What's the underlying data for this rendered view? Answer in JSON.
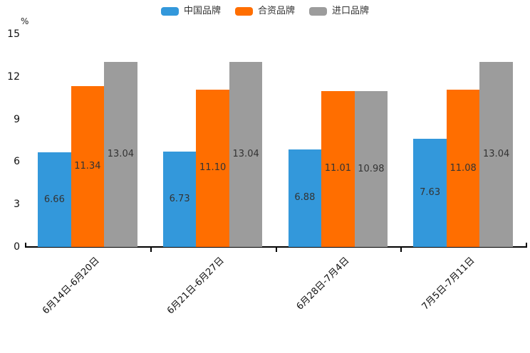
{
  "colors": {
    "china_brand": "#3398DB",
    "joint_venture_brand": "#FF6E00",
    "import_brand": "#9C9C9C",
    "axis_line": "#000000",
    "value_label_text": "#333333",
    "tick_label_text": "#111111",
    "background": "#ffffff"
  },
  "legend": {
    "items": [
      {
        "label": "中国品牌",
        "color": "#3398DB"
      },
      {
        "label": "合资品牌",
        "color": "#FF6E00"
      },
      {
        "label": "进口品牌",
        "color": "#9C9C9C"
      }
    ]
  },
  "chart_data": {
    "type": "bar",
    "title": "",
    "unit_label": "%",
    "categories": [
      "6月14日-6月20日",
      "6月21日-6月27日",
      "6月28日-7月4日",
      "7月5日-7月11日"
    ],
    "series": [
      {
        "name": "中国品牌",
        "color": "#3398DB",
        "values": [
          6.66,
          6.73,
          6.88,
          7.63
        ]
      },
      {
        "name": "合资品牌",
        "color": "#FF6E00",
        "values": [
          11.34,
          11.1,
          11.01,
          11.08
        ]
      },
      {
        "name": "进口品牌",
        "color": "#9C9C9C",
        "values": [
          13.04,
          13.04,
          10.98,
          13.04
        ]
      }
    ],
    "value_label_decimals": 2,
    "y_ticks": [
      0,
      3,
      6,
      9,
      12,
      15
    ],
    "ylim": [
      0,
      15
    ],
    "grid": false,
    "legend_position": "top-center",
    "x_label_rotation_deg": 45,
    "value_labels_position": "inside-center"
  }
}
